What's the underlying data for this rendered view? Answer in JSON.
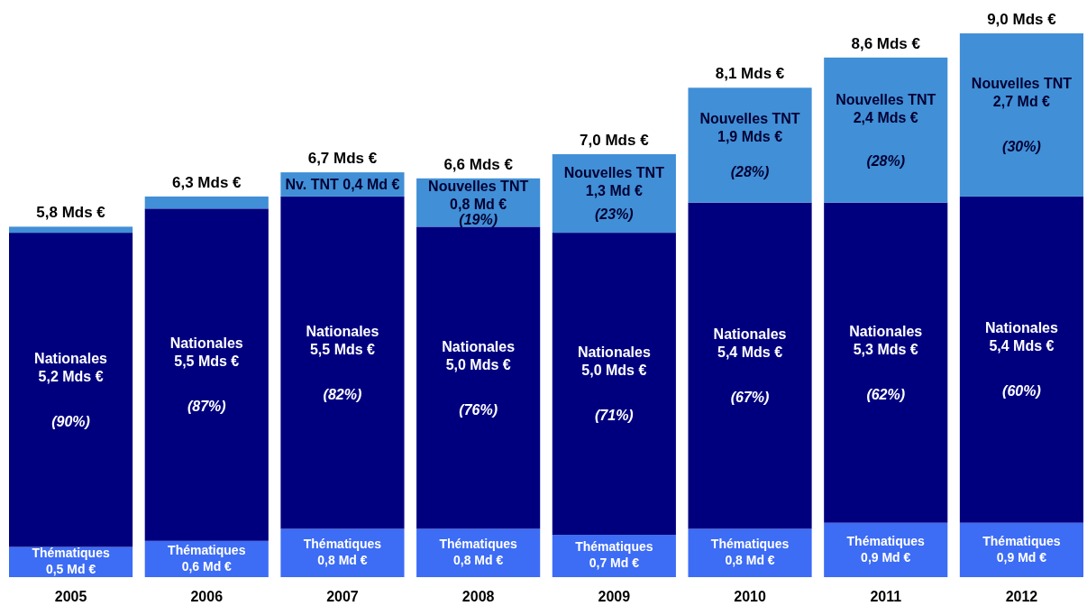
{
  "chart_data": {
    "type": "bar",
    "stacked": true,
    "tick_labels": "x",
    "categories": [
      "2005",
      "2006",
      "2007",
      "2008",
      "2009",
      "2010",
      "2011",
      "2012"
    ],
    "series": [
      {
        "color": "#3d6cf5",
        "values": [
          0.5,
          0.6,
          0.8,
          0.8,
          0.7,
          0.8,
          0.9,
          0.9
        ],
        "value_labels": [
          "Thématiques\n0,5 Md €",
          "Thématiques\n0,6 Md €",
          "Thématiques\n0,8 Md €",
          "Thématiques\n0,8 Md €",
          "Thématiques\n0,7 Md €",
          "Thématiques\n0,8 Md €",
          "Thématiques\n0,9 Md €",
          "Thématiques\n0,9 Md €"
        ]
      },
      {
        "color": "#00007f",
        "values": [
          5.2,
          5.5,
          5.5,
          5.0,
          5.0,
          5.4,
          5.3,
          5.4
        ],
        "value_labels": [
          "Nationales\n5,2 Mds €\n(90%)",
          "Nationales\n5,5 Mds €\n(87%)",
          "Nationales\n5,5 Mds €\n(82%)",
          "Nationales\n5,0 Mds €\n(76%)",
          "Nationales\n5,0 Mds €\n(71%)",
          "Nationales\n5,4 Mds €\n(67%)",
          "Nationales\n5,3 Mds €\n(62%)",
          "Nationales\n5,4 Mds €\n(60%)"
        ]
      },
      {
        "color": "#418fd6",
        "values": [
          0.1,
          0.2,
          0.4,
          0.8,
          1.3,
          1.9,
          2.4,
          2.7
        ],
        "value_labels": [
          null,
          null,
          "Nv. TNT 0,4 Md €",
          "Nouvelles TNT\n0,8 Md €\n(19%)",
          "Nouvelles TNT\n1,3 Md €\n(23%)",
          "Nouvelles TNT\n1,9 Mds €\n(28%)",
          "Nouvelles TNT\n2,4 Mds €\n(28%)",
          "Nouvelles TNT\n2,7 Md €\n(30%)"
        ]
      }
    ],
    "totals": [
      "5,8 Mds €",
      "6,3 Mds €",
      "6,7 Mds €",
      "6,6 Mds €",
      "7,0 Mds €",
      "8,1 Mds €",
      "8,6 Mds €",
      "9,0 Mds €"
    ]
  }
}
